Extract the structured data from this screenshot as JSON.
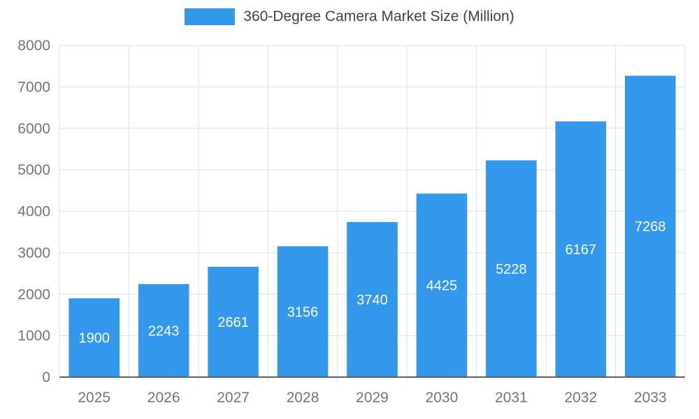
{
  "chart_data": {
    "type": "bar",
    "title": "360-Degree Camera Market Size (Million)",
    "categories": [
      "2025",
      "2026",
      "2027",
      "2028",
      "2029",
      "2030",
      "2031",
      "2032",
      "2033"
    ],
    "values": [
      1900,
      2243,
      2661,
      3156,
      3740,
      4425,
      5228,
      6167,
      7268
    ],
    "xlabel": "",
    "ylabel": "",
    "ylim": [
      0,
      8000
    ],
    "ytick_step": 1000,
    "yticks": [
      0,
      1000,
      2000,
      3000,
      4000,
      5000,
      6000,
      7000,
      8000
    ],
    "grid": true,
    "legend_position": "top",
    "colors": {
      "bar": "#3398EC",
      "grid": "#e0e0e0",
      "axis": "#616161",
      "tick_label": "#757575",
      "value_label": "#ffffff",
      "legend_text": "#424242"
    }
  }
}
